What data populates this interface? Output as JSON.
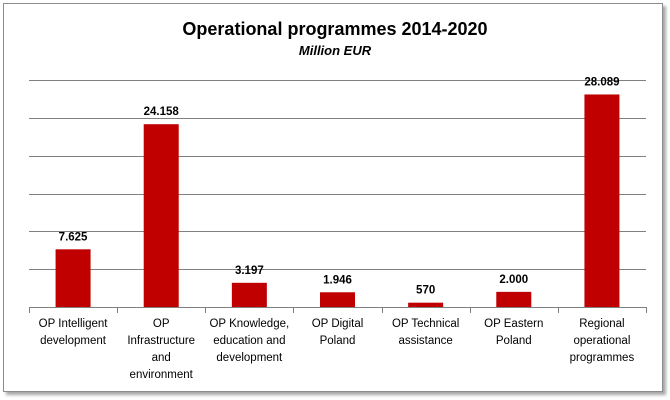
{
  "chart_data": {
    "type": "bar",
    "title": "Operational programmes 2014-2020",
    "subtitle": "Million EUR",
    "categories": [
      "OP Intelligent development",
      "OP Infrastructure and environment",
      "OP Knowledge, education and development",
      "OP Digital Poland",
      "OP Technical assistance",
      "OP Eastern Poland",
      "Regional operational programmes"
    ],
    "category_lines": [
      [
        "OP Intelligent",
        "development"
      ],
      [
        "OP",
        "Infrastructure",
        "and",
        "environment"
      ],
      [
        "OP Knowledge,",
        "education and",
        "development"
      ],
      [
        "OP Digital",
        "Poland"
      ],
      [
        "OP Technical",
        "assistance"
      ],
      [
        "OP Eastern",
        "Poland"
      ],
      [
        "Regional",
        "operational",
        "programmes"
      ]
    ],
    "values": [
      7625,
      24158,
      3197,
      1946,
      570,
      2000,
      28089
    ],
    "value_labels": [
      "7.625",
      "24.158",
      "3.197",
      "1.946",
      "570",
      "2.000",
      "28.089"
    ],
    "ylim": [
      0,
      30000
    ],
    "ytick_step": 5000,
    "grid": true,
    "legend": "none",
    "xlabel": "",
    "ylabel": "",
    "bar_color": "#c00000",
    "grid_color": "#808080"
  }
}
